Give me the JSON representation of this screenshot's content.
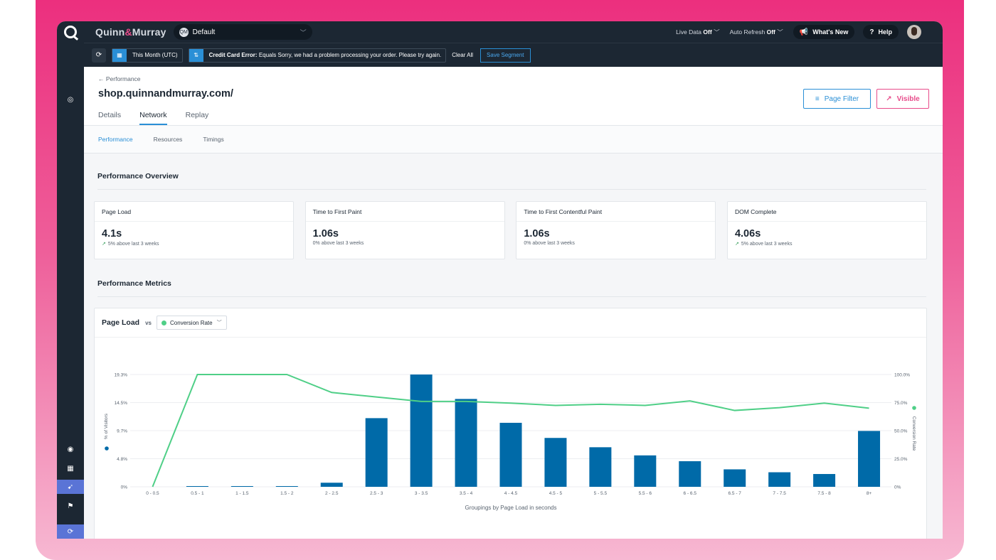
{
  "brand": {
    "name_a": "Quinn",
    "amp": "&",
    "name_b": "Murray"
  },
  "workspace": {
    "avatar_text": "QM",
    "label": "Default"
  },
  "topbar": {
    "live_data_label": "Live Data",
    "live_data_value": "Off",
    "auto_refresh_label": "Auto Refresh",
    "auto_refresh_value": "Off",
    "whats_new": "What's New",
    "help": "Help"
  },
  "filterbar": {
    "date_range": "This Month (UTC)",
    "error_bold": "Credit Card Error:",
    "error_text": "Equals Sorry, we had a problem processing your order. Please try again.",
    "clear_all": "Clear All",
    "save_segment": "Save Segment"
  },
  "header": {
    "breadcrumb": "← Performance",
    "title": "shop.quinnandmurray.com/",
    "tabs": [
      "Details",
      "Network",
      "Replay"
    ],
    "active_tab": "Network",
    "page_filter": "Page Filter",
    "visible": "Visible"
  },
  "subnav": [
    "Performance",
    "Resources",
    "Timings"
  ],
  "overview": {
    "title": "Performance Overview",
    "cards": [
      {
        "label": "Page Load",
        "value": "4.1s",
        "trend": "5% above last 3 weeks",
        "arrow": true
      },
      {
        "label": "Time to First Paint",
        "value": "1.06s",
        "trend": "0% above last 3 weeks",
        "arrow": false
      },
      {
        "label": "Time to First Contentful Paint",
        "value": "1.06s",
        "trend": "0% above last 3 weeks",
        "arrow": false
      },
      {
        "label": "DOM Complete",
        "value": "4.06s",
        "trend": "5% above last 3 weeks",
        "arrow": true
      }
    ]
  },
  "metrics": {
    "title": "Performance Metrics",
    "chart_label": "Page Load",
    "vs": "vs",
    "dropdown": "Conversion Rate"
  },
  "colors": {
    "bar": "#006aa8",
    "line": "#4fcf87",
    "accent": "#2a8fd6",
    "pink": "#e84b8a"
  },
  "chart_data": {
    "type": "bar",
    "xlabel": "Groupings by Page Load in seconds",
    "ylabel": "% of Visitors",
    "y2label": "Conversion Rate",
    "yticks": [
      "0%",
      "4.8%",
      "9.7%",
      "14.5%",
      "19.3%"
    ],
    "y2ticks": [
      "0%",
      "25.0%",
      "50.0%",
      "75.0%",
      "100.0%"
    ],
    "ylim": [
      0,
      19.3
    ],
    "y2lim": [
      0,
      100
    ],
    "categories": [
      "0 - 0.5",
      "0.5 - 1",
      "1 - 1.5",
      "1.5 - 2",
      "2 - 2.5",
      "2.5 - 3",
      "3 - 3.5",
      "3.5 - 4",
      "4 - 4.5",
      "4.5 - 5",
      "5 - 5.5",
      "5.5 - 6",
      "6 - 6.5",
      "6.5 - 7",
      "7 - 7.5",
      "7.5 - 8",
      "8+"
    ],
    "series": [
      {
        "name": "% of Visitors",
        "kind": "bar",
        "values": [
          0,
          0.1,
          0.1,
          0.05,
          0.7,
          11.8,
          19.3,
          15.1,
          11.0,
          8.4,
          6.8,
          5.4,
          4.4,
          3.0,
          2.5,
          2.2,
          9.6
        ]
      },
      {
        "name": "Conversion Rate",
        "kind": "line",
        "values": [
          0,
          100,
          100,
          100,
          84,
          80,
          76,
          76,
          74.5,
          72.5,
          73.5,
          72.5,
          76.5,
          68,
          70.5,
          74.5,
          70
        ]
      }
    ]
  }
}
